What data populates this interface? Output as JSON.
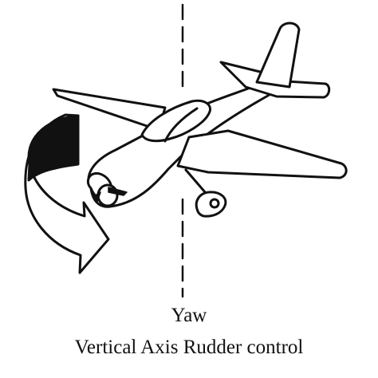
{
  "caption": {
    "title": "Yaw",
    "subtitle": "Vertical Axis Rudder control"
  },
  "icons": {
    "aircraft": "airplane-icon",
    "rotation": "curved-rotation-arrow-icon",
    "axis": "vertical-axis-dashed-line"
  },
  "colors": {
    "stroke": "#111111",
    "background": "#ffffff",
    "arrow_fill": "#111111"
  }
}
